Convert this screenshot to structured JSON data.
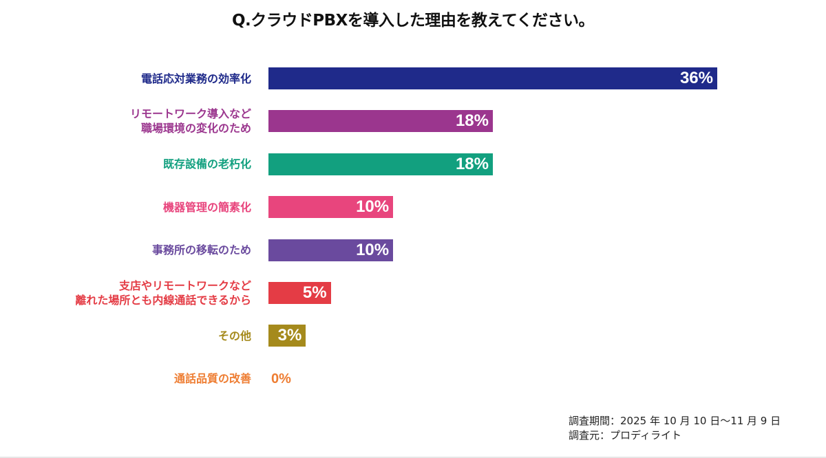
{
  "chart_data": {
    "type": "bar",
    "orientation": "horizontal",
    "title": "Q.クラウドPBXを導入した理由を教えてください。",
    "xlabel": "",
    "ylabel": "",
    "xlim": [
      0,
      36
    ],
    "categories": [
      "電話応対業務の効率化",
      "リモートワーク導入など\n職場環境の変化のため",
      "既存設備の老朽化",
      "機器管理の簡素化",
      "事務所の移転のため",
      "支店やリモートワークなど\n離れた場所とも内線通話できるから",
      "その他",
      "通話品質の改善"
    ],
    "values": [
      36,
      18,
      18,
      10,
      10,
      5,
      3,
      0
    ],
    "value_labels": [
      "36%",
      "18%",
      "18%",
      "10%",
      "10%",
      "5%",
      "3%",
      "0%"
    ],
    "colors": [
      "#1f2a8a",
      "#9b368e",
      "#12a07f",
      "#e8457d",
      "#6a4a9e",
      "#e43c45",
      "#a58a1c",
      "#ee7d32"
    ]
  },
  "footnotes": {
    "period": "調査期間：2025 年 10 月 10 日〜11 月 9 日",
    "source": "調査元：プロディライト"
  }
}
